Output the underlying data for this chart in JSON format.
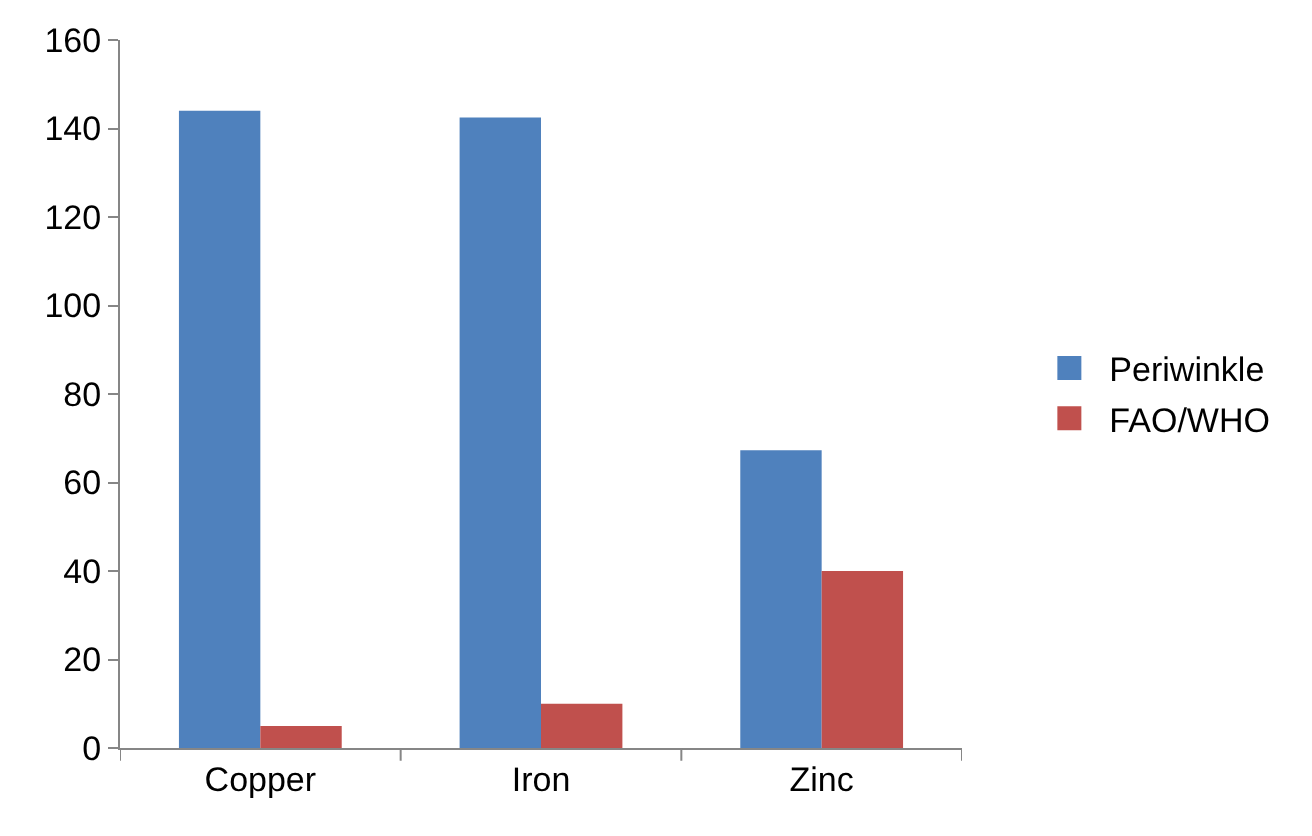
{
  "chart_data": {
    "type": "bar",
    "categories": [
      "Copper",
      "Iron",
      "Zinc"
    ],
    "series": [
      {
        "name": "Periwinkle",
        "color": "#4f81bd",
        "values": [
          144,
          142.5,
          67.3
        ]
      },
      {
        "name": "FAO/WHO",
        "color": "#c0504d",
        "values": [
          5,
          10,
          40
        ]
      }
    ],
    "ylim": [
      0,
      160
    ],
    "yticks": [
      0,
      20,
      40,
      60,
      80,
      100,
      120,
      140,
      160
    ],
    "legend": "right"
  }
}
